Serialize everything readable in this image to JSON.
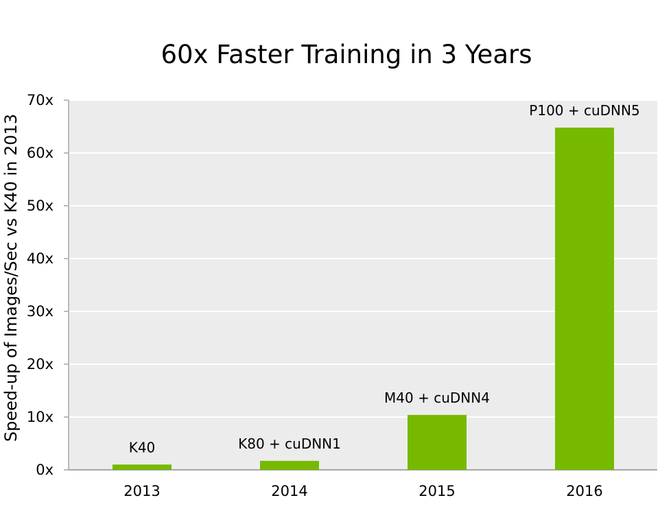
{
  "chart_data": {
    "type": "bar",
    "title": "60x Faster Training in 3 Years",
    "ylabel": "Speed-up of Images/Sec vs K40 in 2013",
    "xlabel": "",
    "categories": [
      "2013",
      "2014",
      "2015",
      "2016"
    ],
    "values": [
      1,
      1.7,
      10.4,
      64.8
    ],
    "bar_labels": [
      "K40",
      "K80 + cuDNN1",
      "M40 + cuDNN4",
      "P100 + cuDNN5"
    ],
    "ylim": [
      0,
      70
    ],
    "yticks": [
      "0x",
      "10x",
      "20x",
      "30x",
      "40x",
      "50x",
      "60x",
      "70x"
    ],
    "grid": true,
    "legend": "none",
    "colors": {
      "bar": "#76b900",
      "plot_background": "#ececec",
      "grid": "#ffffff",
      "axis": "#a6a6a6"
    }
  }
}
